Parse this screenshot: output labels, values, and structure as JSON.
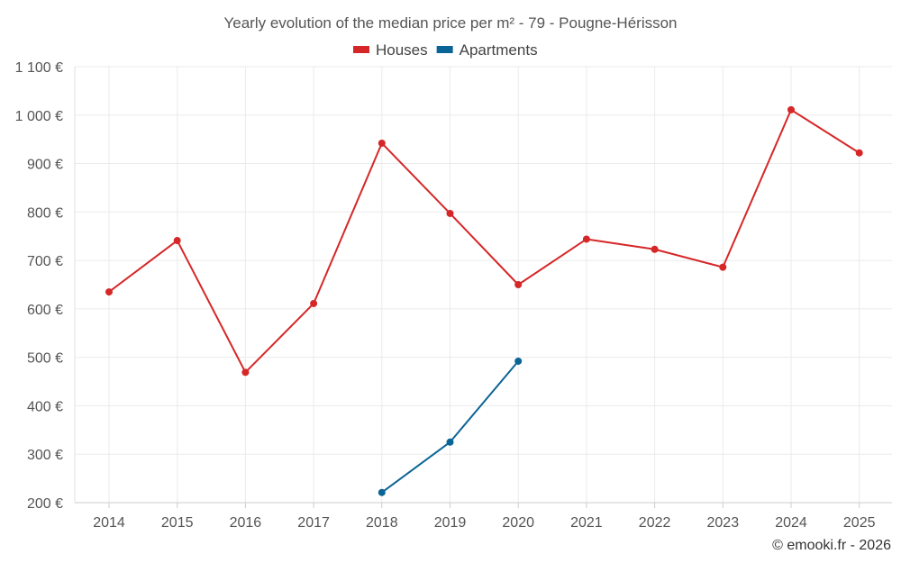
{
  "chart_data": {
    "type": "line",
    "title": "Yearly evolution of the median price per m² - 79 - Pougne-Hérisson",
    "x": [
      "2014",
      "2015",
      "2016",
      "2017",
      "2018",
      "2019",
      "2020",
      "2021",
      "2022",
      "2023",
      "2024",
      "2025"
    ],
    "y_ticks": [
      200,
      300,
      400,
      500,
      600,
      700,
      800,
      900,
      1000,
      1100
    ],
    "y_tick_labels": [
      "200 €",
      "300 €",
      "400 €",
      "500 €",
      "600 €",
      "700 €",
      "800 €",
      "900 €",
      "1 000 €",
      "1 100 €"
    ],
    "ylim": [
      200,
      1100
    ],
    "xlabel": "",
    "ylabel": "",
    "grid": true,
    "legend_position": "top-center",
    "series": [
      {
        "name": "Houses",
        "color": "#d62728",
        "values": [
          635,
          741,
          469,
          611,
          942,
          797,
          650,
          744,
          723,
          686,
          1011,
          922
        ]
      },
      {
        "name": "Apartments",
        "color": "#0b6496",
        "values": [
          null,
          null,
          null,
          null,
          221,
          325,
          492,
          null,
          null,
          null,
          null,
          null
        ]
      }
    ],
    "footer": "© emooki.fr - 2026"
  }
}
